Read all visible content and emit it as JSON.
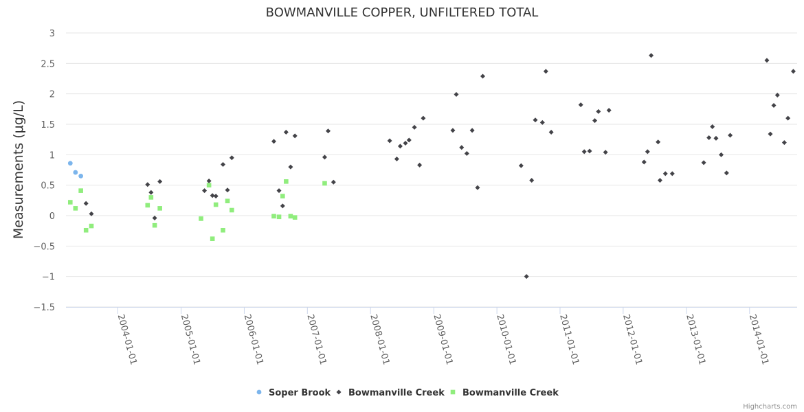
{
  "chart_data": {
    "type": "scatter",
    "title": "BOWMANVILLE COPPER, UNFILTERED TOTAL",
    "xlabel": "",
    "ylabel": "Measurements (μg/L)",
    "ylim": [
      -1.5,
      3
    ],
    "yticks": [
      "3",
      "2.5",
      "2",
      "1.5",
      "1",
      "0.5",
      "0",
      "−0.5",
      "−1",
      "−1.5"
    ],
    "xlim": [
      "2003-03-07",
      "2014-10-03"
    ],
    "xticks": [
      "2004-01-01",
      "2005-01-01",
      "2006-01-01",
      "2007-01-01",
      "2008-01-01",
      "2009-01-01",
      "2010-01-01",
      "2011-01-01",
      "2012-01-01",
      "2013-01-01",
      "2014-01-01"
    ],
    "grid": true,
    "legend": "bottom-center",
    "credits": "Highcharts.com",
    "series": [
      {
        "name": "Soper Brook",
        "color": "#7cb5ec",
        "marker": "circle",
        "points": [
          [
            "2003-04-01",
            0.86
          ],
          [
            "2003-05-01",
            0.71
          ],
          [
            "2003-06-01",
            0.65
          ]
        ]
      },
      {
        "name": "Bowmanville Creek",
        "color": "#434348",
        "marker": "diamond",
        "points": [
          [
            "2003-07-01",
            0.2
          ],
          [
            "2003-08-01",
            0.03
          ],
          [
            "2004-06-21",
            0.51
          ],
          [
            "2004-07-11",
            0.38
          ],
          [
            "2004-08-01",
            -0.04
          ],
          [
            "2004-08-31",
            0.56
          ],
          [
            "2005-05-16",
            0.41
          ],
          [
            "2005-06-11",
            0.57
          ],
          [
            "2005-07-01",
            0.33
          ],
          [
            "2005-07-21",
            0.32
          ],
          [
            "2005-08-31",
            0.84
          ],
          [
            "2005-09-26",
            0.42
          ],
          [
            "2005-10-21",
            0.95
          ],
          [
            "2006-06-21",
            1.22
          ],
          [
            "2006-07-21",
            0.41
          ],
          [
            "2006-08-11",
            0.16
          ],
          [
            "2006-08-31",
            1.37
          ],
          [
            "2006-09-26",
            0.8
          ],
          [
            "2006-10-21",
            1.31
          ],
          [
            "2007-04-11",
            0.96
          ],
          [
            "2007-05-01",
            1.39
          ],
          [
            "2007-06-01",
            0.55
          ],
          [
            "2008-04-21",
            1.23
          ],
          [
            "2008-06-01",
            0.93
          ],
          [
            "2008-06-21",
            1.14
          ],
          [
            "2008-07-21",
            1.19
          ],
          [
            "2008-08-11",
            1.24
          ],
          [
            "2008-09-11",
            1.45
          ],
          [
            "2008-10-11",
            0.83
          ],
          [
            "2008-11-01",
            1.6
          ],
          [
            "2009-04-21",
            1.4
          ],
          [
            "2009-05-11",
            1.99
          ],
          [
            "2009-06-11",
            1.12
          ],
          [
            "2009-07-11",
            1.02
          ],
          [
            "2009-08-11",
            1.4
          ],
          [
            "2009-09-11",
            0.46
          ],
          [
            "2009-10-11",
            2.29
          ],
          [
            "2010-05-21",
            0.82
          ],
          [
            "2010-06-21",
            -1.0
          ],
          [
            "2010-07-21",
            0.58
          ],
          [
            "2010-08-11",
            1.57
          ],
          [
            "2010-09-21",
            1.53
          ],
          [
            "2010-10-11",
            2.37
          ],
          [
            "2010-11-11",
            1.37
          ],
          [
            "2011-05-01",
            1.82
          ],
          [
            "2011-05-21",
            1.05
          ],
          [
            "2011-06-21",
            1.06
          ],
          [
            "2011-07-21",
            1.56
          ],
          [
            "2011-08-11",
            1.71
          ],
          [
            "2011-09-21",
            1.04
          ],
          [
            "2011-10-11",
            1.73
          ],
          [
            "2012-05-01",
            0.88
          ],
          [
            "2012-05-21",
            1.05
          ],
          [
            "2012-06-11",
            2.63
          ],
          [
            "2012-07-21",
            1.21
          ],
          [
            "2012-08-01",
            0.58
          ],
          [
            "2012-09-01",
            0.69
          ],
          [
            "2012-10-11",
            0.69
          ],
          [
            "2013-04-11",
            0.87
          ],
          [
            "2013-05-11",
            1.28
          ],
          [
            "2013-05-31",
            1.46
          ],
          [
            "2013-06-21",
            1.27
          ],
          [
            "2013-07-21",
            1.0
          ],
          [
            "2013-08-21",
            0.7
          ],
          [
            "2013-09-11",
            1.32
          ],
          [
            "2014-04-11",
            2.55
          ],
          [
            "2014-05-01",
            1.34
          ],
          [
            "2014-05-21",
            1.81
          ],
          [
            "2014-06-11",
            1.98
          ],
          [
            "2014-07-21",
            1.2
          ],
          [
            "2014-08-11",
            1.6
          ],
          [
            "2014-09-11",
            2.37
          ]
        ]
      },
      {
        "name": "Bowmanville Creek",
        "color": "#90ed7d",
        "marker": "square",
        "points": [
          [
            "2003-04-01",
            0.22
          ],
          [
            "2003-05-01",
            0.12
          ],
          [
            "2003-06-01",
            0.41
          ],
          [
            "2003-07-01",
            -0.24
          ],
          [
            "2003-08-01",
            -0.17
          ],
          [
            "2004-06-21",
            0.17
          ],
          [
            "2004-07-11",
            0.3
          ],
          [
            "2004-08-01",
            -0.16
          ],
          [
            "2004-08-31",
            0.12
          ],
          [
            "2005-04-26",
            -0.05
          ],
          [
            "2005-06-11",
            0.5
          ],
          [
            "2005-07-01",
            -0.38
          ],
          [
            "2005-07-21",
            0.18
          ],
          [
            "2005-08-31",
            -0.24
          ],
          [
            "2005-09-26",
            0.24
          ],
          [
            "2005-10-21",
            0.09
          ],
          [
            "2006-06-21",
            -0.01
          ],
          [
            "2006-07-21",
            -0.02
          ],
          [
            "2006-08-11",
            0.32
          ],
          [
            "2006-08-31",
            0.56
          ],
          [
            "2006-09-26",
            -0.01
          ],
          [
            "2006-10-21",
            -0.03
          ],
          [
            "2007-04-11",
            0.53
          ]
        ]
      }
    ]
  }
}
